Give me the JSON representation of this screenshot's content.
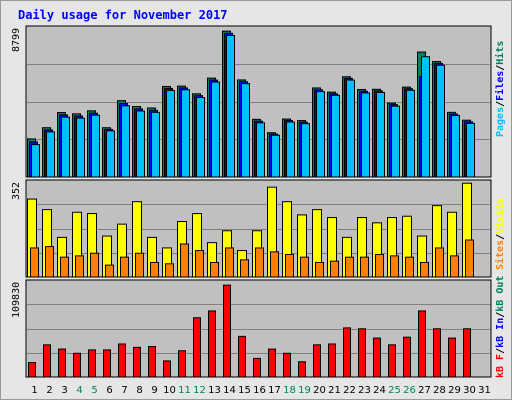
{
  "colors": {
    "background": "#e6e6e6",
    "plot_bg": "#c0c0c0",
    "title": "#0000ff",
    "hits": "#00805c",
    "files": "#0000ff",
    "pages": "#00c0ff",
    "visits": "#ffff00",
    "sites": "#ff8000",
    "kb_f": "#ff0000",
    "kb_in": "#0000ff",
    "kb_out": "#00805c",
    "weekend_day": "#00805c",
    "weekday_day": "#000000"
  },
  "chart_data": [
    {
      "type": "bar",
      "title": "Daily usage for November 2017",
      "ymax_label": "8799",
      "ylim": [
        0,
        8799
      ],
      "grid": true,
      "legend": [
        "Pages",
        "/",
        "Files",
        "/",
        "Hits"
      ],
      "categories": [
        "1",
        "2",
        "3",
        "4",
        "5",
        "6",
        "7",
        "8",
        "9",
        "10",
        "11",
        "12",
        "13",
        "14",
        "15",
        "16",
        "17",
        "18",
        "19",
        "20",
        "21",
        "22",
        "23",
        "24",
        "25",
        "26",
        "27",
        "28",
        "29",
        "30",
        "31"
      ],
      "series": [
        {
          "name": "Hits",
          "values": [
            2280,
            2950,
            3860,
            3780,
            3960,
            2950,
            4570,
            4220,
            4130,
            5420,
            5440,
            4980,
            5920,
            8730,
            5810,
            3450,
            2650,
            3470,
            3380,
            5330,
            5080,
            6000,
            5240,
            5250,
            4420,
            5380,
            7480,
            6910,
            3870,
            3400,
            0
          ]
        },
        {
          "name": "Files",
          "values": [
            2100,
            2820,
            3720,
            3650,
            3820,
            2850,
            4400,
            4080,
            3990,
            5300,
            5330,
            4870,
            5800,
            8600,
            5700,
            3340,
            2570,
            3380,
            3280,
            5220,
            4980,
            5900,
            5130,
            5150,
            4330,
            5280,
            6000,
            6800,
            3770,
            3300,
            0
          ]
        },
        {
          "name": "Pages",
          "values": [
            1940,
            2700,
            3580,
            3520,
            3700,
            2760,
            4260,
            3950,
            3870,
            5180,
            5220,
            4760,
            5680,
            8470,
            5590,
            3240,
            2500,
            3290,
            3190,
            5110,
            4890,
            5800,
            5030,
            5060,
            4240,
            5190,
            7200,
            6690,
            3680,
            3210,
            0
          ]
        }
      ]
    },
    {
      "type": "bar",
      "ymax_label": "352",
      "ylim": [
        0,
        352
      ],
      "grid": true,
      "legend": [
        "Sites",
        "/",
        "Visits"
      ],
      "categories": [
        "1",
        "2",
        "3",
        "4",
        "5",
        "6",
        "7",
        "8",
        "9",
        "10",
        "11",
        "12",
        "13",
        "14",
        "15",
        "16",
        "17",
        "18",
        "19",
        "20",
        "21",
        "22",
        "23",
        "24",
        "25",
        "26",
        "27",
        "28",
        "29",
        "30",
        "31"
      ],
      "series": [
        {
          "name": "Visits",
          "values": [
            295,
            255,
            150,
            245,
            240,
            155,
            200,
            285,
            150,
            110,
            210,
            240,
            130,
            175,
            100,
            175,
            340,
            285,
            235,
            255,
            225,
            150,
            225,
            205,
            225,
            230,
            155,
            270,
            245,
            355,
            0
          ]
        },
        {
          "name": "Sites",
          "values": [
            110,
            115,
            75,
            80,
            90,
            45,
            75,
            90,
            55,
            50,
            125,
            100,
            55,
            110,
            65,
            110,
            95,
            85,
            75,
            55,
            60,
            75,
            75,
            85,
            80,
            75,
            55,
            110,
            80,
            140,
            0
          ]
        }
      ]
    },
    {
      "type": "bar",
      "ymax_label": "109830",
      "ylim": [
        0,
        109830
      ],
      "grid": true,
      "legend": [
        "kB F",
        "/",
        "kB In",
        "/",
        "kB Out"
      ],
      "categories": [
        "1",
        "2",
        "3",
        "4",
        "5",
        "6",
        "7",
        "8",
        "9",
        "10",
        "11",
        "12",
        "13",
        "14",
        "15",
        "16",
        "17",
        "18",
        "19",
        "20",
        "21",
        "22",
        "23",
        "24",
        "25",
        "26",
        "27",
        "28",
        "29",
        "30",
        "31"
      ],
      "series": [
        {
          "name": "kB F",
          "values": [
            17000,
            38000,
            33000,
            28000,
            32000,
            32000,
            39000,
            35000,
            36000,
            19000,
            31000,
            70000,
            78000,
            108500,
            48000,
            22000,
            33000,
            28000,
            18000,
            38000,
            39000,
            58000,
            57000,
            46000,
            38000,
            47000,
            78000,
            57000,
            46000,
            57000,
            0
          ]
        }
      ]
    }
  ],
  "x_weekend_days": [
    "4",
    "5",
    "11",
    "12",
    "18",
    "19",
    "25",
    "26"
  ]
}
